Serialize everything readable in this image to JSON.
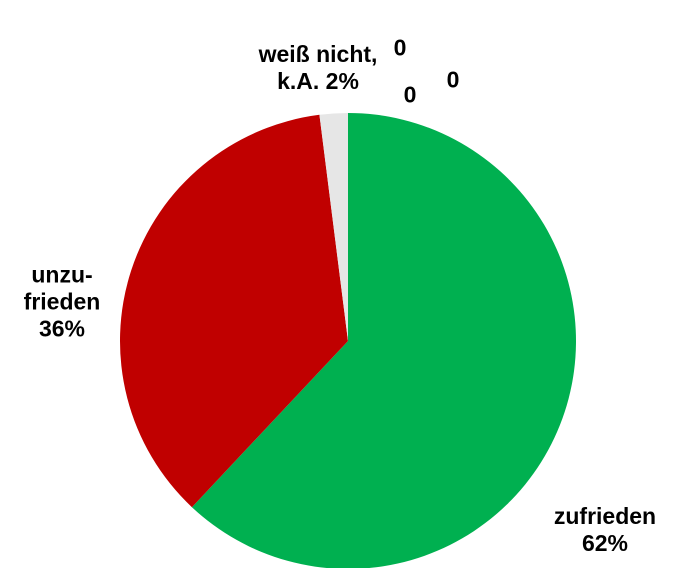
{
  "chart_data": {
    "type": "pie",
    "categories": [
      "zufrieden",
      "unzu-frieden",
      "weiß nicht, k.A.",
      null,
      null,
      null
    ],
    "values": [
      62,
      36,
      2,
      0,
      0,
      0
    ],
    "value_labels": [
      "62%",
      "36%",
      "2%",
      "0",
      "0",
      "0"
    ],
    "colors": [
      "#00b050",
      "#c00000",
      "#e6e6e6",
      "#e6e6e6",
      "#e6e6e6",
      "#e6e6e6"
    ]
  }
}
